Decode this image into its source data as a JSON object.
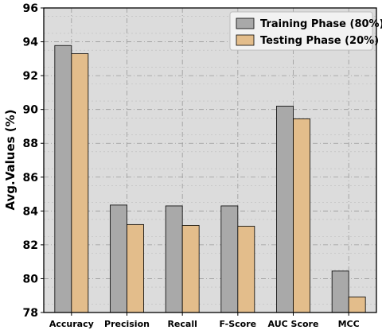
{
  "chart_data": {
    "type": "bar",
    "title": "",
    "xlabel": "",
    "ylabel": "Avg.Values (%)",
    "categories": [
      "Accuracy",
      "Precision",
      "Recall",
      "F-Score",
      "AUC Score",
      "MCC"
    ],
    "series": [
      {
        "name": "Training Phase (80%)",
        "values": [
          93.78,
          84.35,
          84.3,
          84.3,
          90.2,
          80.45
        ],
        "color": "#a9a9a9"
      },
      {
        "name": "Testing Phase (20%)",
        "values": [
          93.3,
          83.2,
          83.15,
          83.1,
          89.45,
          78.92
        ],
        "color": "#e3bd8b"
      }
    ],
    "ylim": [
      78,
      96
    ],
    "yticks": [
      "78",
      "80",
      "82",
      "84",
      "86",
      "88",
      "90",
      "92",
      "94",
      "96"
    ],
    "grid": true,
    "legend_position": "top-right",
    "plot_background": "#dcdcdc"
  }
}
